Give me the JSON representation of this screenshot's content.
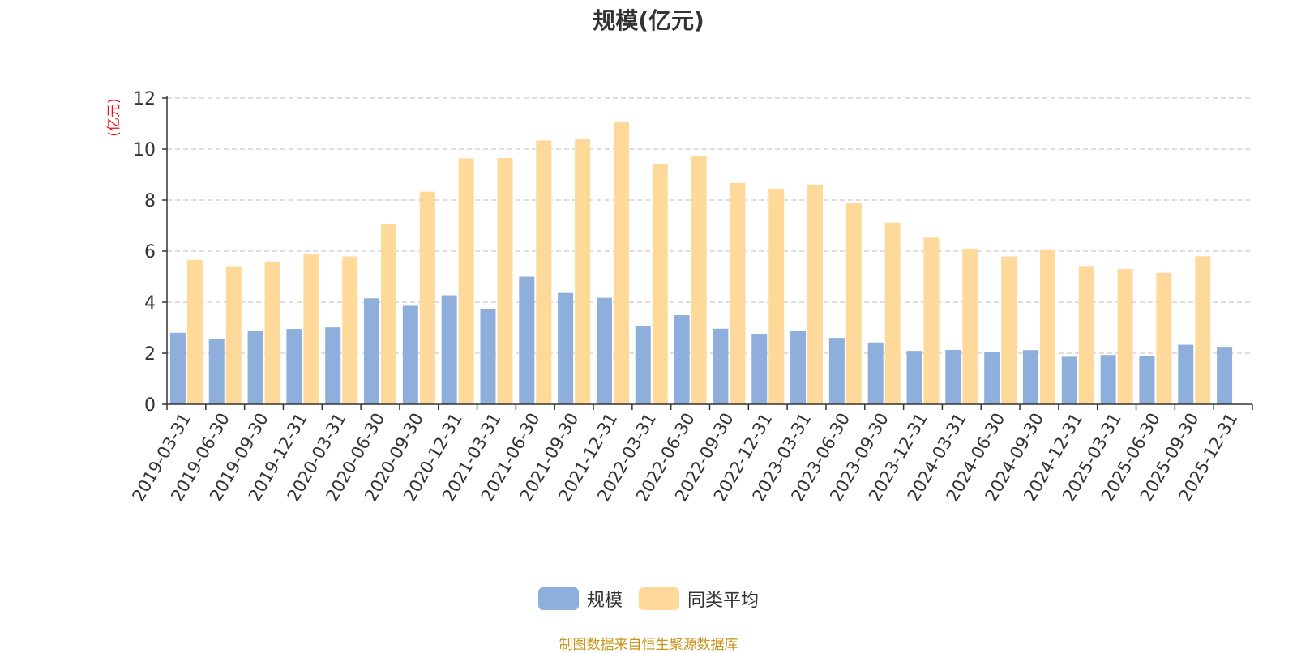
{
  "chart_data": {
    "type": "bar",
    "title": "规模(亿元)",
    "ylabel": "(亿元)",
    "xlabel": "",
    "ylim": [
      0,
      12
    ],
    "yticks": [
      0,
      2,
      4,
      6,
      8,
      10,
      12
    ],
    "grid": true,
    "legend_position": "bottom-center",
    "categories": [
      "2019-03-31",
      "2019-06-30",
      "2019-09-30",
      "2019-12-31",
      "2020-03-31",
      "2020-06-30",
      "2020-09-30",
      "2020-12-31",
      "2021-03-31",
      "2021-06-30",
      "2021-09-30",
      "2021-12-31",
      "2022-03-31",
      "2022-06-30",
      "2022-09-30",
      "2022-12-31",
      "2023-03-31",
      "2023-06-30",
      "2023-09-30",
      "2023-12-31",
      "2024-03-31",
      "2024-06-30",
      "2024-09-30",
      "2024-12-31",
      "2025-03-31",
      "2025-06-30",
      "2025-09-30",
      "2025-12-31"
    ],
    "series": [
      {
        "name": "规模",
        "color": "#8eaedb",
        "values": [
          2.8,
          2.57,
          2.86,
          2.95,
          3.01,
          4.15,
          3.86,
          4.27,
          3.75,
          5.0,
          4.36,
          4.17,
          3.05,
          3.49,
          2.96,
          2.76,
          2.87,
          2.6,
          2.42,
          2.09,
          2.13,
          2.03,
          2.12,
          1.86,
          1.93,
          1.9,
          2.33,
          2.25
        ]
      },
      {
        "name": "同类平均",
        "color": "#ffd999",
        "values": [
          5.66,
          5.41,
          5.56,
          5.87,
          5.79,
          7.06,
          8.33,
          9.64,
          9.65,
          10.34,
          10.38,
          11.08,
          9.42,
          9.73,
          8.67,
          8.45,
          8.61,
          7.88,
          7.12,
          6.53,
          6.1,
          5.79,
          6.07,
          5.42,
          5.3,
          5.15,
          5.8,
          null
        ]
      }
    ]
  },
  "source_note": "制图数据来自恒生聚源数据库"
}
